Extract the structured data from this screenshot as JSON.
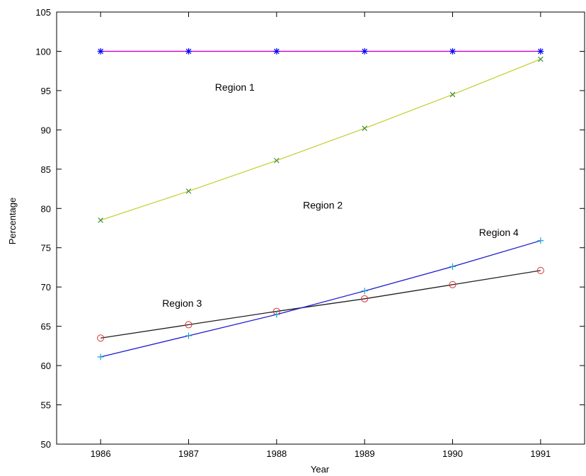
{
  "chart_data": {
    "type": "line",
    "title": "",
    "xlabel": "Year",
    "ylabel": "Percentage",
    "xlim": [
      1985.5,
      1991.5
    ],
    "ylim": [
      50,
      105
    ],
    "x_ticks": [
      1986,
      1987,
      1988,
      1989,
      1990,
      1991
    ],
    "y_ticks": [
      50,
      55,
      60,
      65,
      70,
      75,
      80,
      85,
      90,
      95,
      100,
      105
    ],
    "grid": false,
    "legend": "none",
    "series": [
      {
        "color": "#cc00cc",
        "marker": "asterisk",
        "marker_color": "#0000ff",
        "x": [
          1986,
          1987,
          1988,
          1989,
          1990,
          1991
        ],
        "y": [
          100,
          100,
          100,
          100,
          100,
          100
        ]
      },
      {
        "color": "#c8d23c",
        "marker": "x",
        "marker_color": "#3c8c3c",
        "x": [
          1986,
          1987,
          1988,
          1989,
          1990,
          1991
        ],
        "y": [
          78.5,
          82.2,
          86.1,
          90.2,
          94.5,
          99.0
        ]
      },
      {
        "color": "#202020",
        "marker": "circle",
        "marker_color": "#e03030",
        "x": [
          1986,
          1987,
          1988,
          1989,
          1990,
          1991
        ],
        "y": [
          63.5,
          65.2,
          66.9,
          68.5,
          70.3,
          72.1
        ]
      },
      {
        "color": "#1a1ad0",
        "marker": "plus",
        "marker_color": "#1aa0d0",
        "x": [
          1986,
          1987,
          1988,
          1989,
          1990,
          1991
        ],
        "y": [
          61.1,
          63.8,
          66.5,
          69.5,
          72.6,
          75.9
        ]
      }
    ],
    "annotations": [
      {
        "text": "Region 1",
        "x": 1987.3,
        "y": 95.0
      },
      {
        "text": "Region 2",
        "x": 1988.3,
        "y": 80.0
      },
      {
        "text": "Region 3",
        "x": 1986.7,
        "y": 67.5
      },
      {
        "text": "Region 4",
        "x": 1990.3,
        "y": 76.5
      }
    ]
  }
}
